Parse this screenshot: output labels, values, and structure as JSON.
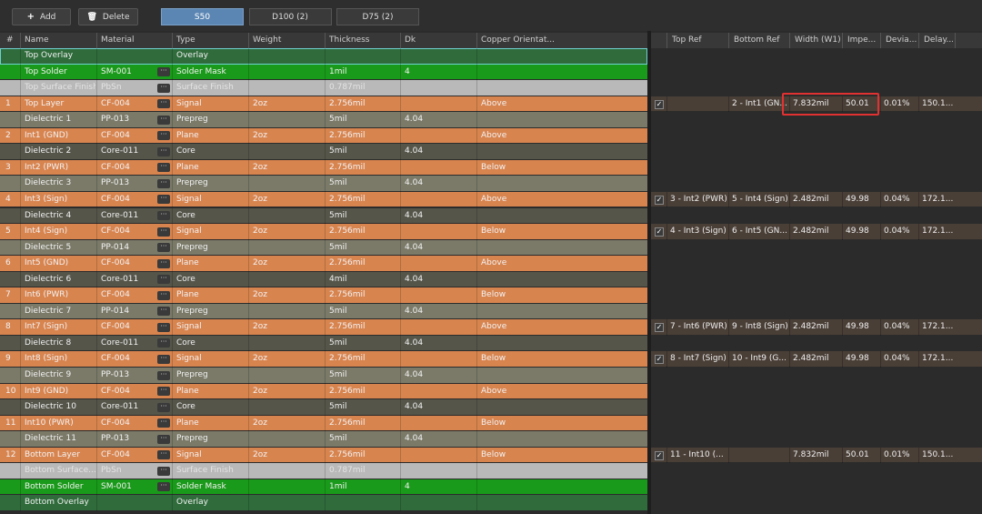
{
  "toolbar": {
    "buttons": [
      "Add",
      "Delete"
    ],
    "tabs": [
      "S50",
      "D100 (2)",
      "D75 (2)"
    ],
    "active_tab": 0
  },
  "left": {
    "columns": [
      "#",
      "Name",
      "Material",
      "Type",
      "Weight",
      "Thickness",
      "Dk",
      "Copper Orientat..."
    ],
    "rows": [
      {
        "color": "#2f6b3b",
        "cells": [
          null,
          "Top Overlay",
          null,
          "Overlay",
          null,
          null,
          null,
          null
        ]
      },
      {
        "color": "#1a9a1a",
        "cells": [
          null,
          "Top Solder",
          "SM-001",
          "Solder Mask",
          null,
          "1mil",
          "4",
          null
        ]
      },
      {
        "color": "#b9b9b9",
        "text_color": "#e4e4e4",
        "cells": [
          null,
          "Top Surface Finish",
          "PbSn",
          "Surface Finish",
          null,
          "0.787mil",
          null,
          null
        ]
      },
      {
        "color": "#d8844f",
        "cells": [
          "1",
          "Top Layer",
          "CF-004",
          "Signal",
          "2oz",
          "2.756mil",
          null,
          "Above"
        ]
      },
      {
        "color": "#7b7a69",
        "cells": [
          null,
          "Dielectric 1",
          "PP-013",
          "Prepreg",
          null,
          "5mil",
          "4.04",
          null
        ]
      },
      {
        "color": "#d8844f",
        "cells": [
          "2",
          "Int1 (GND)",
          "CF-004",
          "Plane",
          "2oz",
          "2.756mil",
          null,
          "Above"
        ]
      },
      {
        "color": "#55554a",
        "cells": [
          null,
          "Dielectric 2",
          "Core-011",
          "Core",
          null,
          "5mil",
          "4.04",
          null
        ]
      },
      {
        "color": "#d8844f",
        "cells": [
          "3",
          "Int2 (PWR)",
          "CF-004",
          "Plane",
          "2oz",
          "2.756mil",
          null,
          "Below"
        ]
      },
      {
        "color": "#7b7a69",
        "cells": [
          null,
          "Dielectric 3",
          "PP-013",
          "Prepreg",
          null,
          "5mil",
          "4.04",
          null
        ]
      },
      {
        "color": "#d8844f",
        "cells": [
          "4",
          "Int3 (Sign)",
          "CF-004",
          "Signal",
          "2oz",
          "2.756mil",
          null,
          "Above"
        ]
      },
      {
        "color": "#55554a",
        "cells": [
          null,
          "Dielectric 4",
          "Core-011",
          "Core",
          null,
          "5mil",
          "4.04",
          null
        ]
      },
      {
        "color": "#d8844f",
        "cells": [
          "5",
          "Int4 (Sign)",
          "CF-004",
          "Signal",
          "2oz",
          "2.756mil",
          null,
          "Below"
        ]
      },
      {
        "color": "#7b7a69",
        "cells": [
          null,
          "Dielectric 5",
          "PP-014",
          "Prepreg",
          null,
          "5mil",
          "4.04",
          null
        ]
      },
      {
        "color": "#d8844f",
        "cells": [
          "6",
          "Int5 (GND)",
          "CF-004",
          "Plane",
          "2oz",
          "2.756mil",
          null,
          "Above"
        ]
      },
      {
        "color": "#55554a",
        "cells": [
          null,
          "Dielectric 6",
          "Core-011",
          "Core",
          null,
          "4mil",
          "4.04",
          null
        ]
      },
      {
        "color": "#d8844f",
        "cells": [
          "7",
          "Int6 (PWR)",
          "CF-004",
          "Plane",
          "2oz",
          "2.756mil",
          null,
          "Below"
        ]
      },
      {
        "color": "#7b7a69",
        "cells": [
          null,
          "Dielectric 7",
          "PP-014",
          "Prepreg",
          null,
          "5mil",
          "4.04",
          null
        ]
      },
      {
        "color": "#d8844f",
        "cells": [
          "8",
          "Int7 (Sign)",
          "CF-004",
          "Signal",
          "2oz",
          "2.756mil",
          null,
          "Above"
        ]
      },
      {
        "color": "#55554a",
        "cells": [
          null,
          "Dielectric 8",
          "Core-011",
          "Core",
          null,
          "5mil",
          "4.04",
          null
        ]
      },
      {
        "color": "#d8844f",
        "cells": [
          "9",
          "Int8 (Sign)",
          "CF-004",
          "Signal",
          "2oz",
          "2.756mil",
          null,
          "Below"
        ]
      },
      {
        "color": "#7b7a69",
        "cells": [
          null,
          "Dielectric 9",
          "PP-013",
          "Prepreg",
          null,
          "5mil",
          "4.04",
          null
        ]
      },
      {
        "color": "#d8844f",
        "cells": [
          "10",
          "Int9 (GND)",
          "CF-004",
          "Plane",
          "2oz",
          "2.756mil",
          null,
          "Above"
        ]
      },
      {
        "color": "#55554a",
        "cells": [
          null,
          "Dielectric 10",
          "Core-011",
          "Core",
          null,
          "5mil",
          "4.04",
          null
        ]
      },
      {
        "color": "#d8844f",
        "cells": [
          "11",
          "Int10 (PWR)",
          "CF-004",
          "Plane",
          "2oz",
          "2.756mil",
          null,
          "Below"
        ]
      },
      {
        "color": "#7b7a69",
        "cells": [
          null,
          "Dielectric 11",
          "PP-013",
          "Prepreg",
          null,
          "5mil",
          "4.04",
          null
        ]
      },
      {
        "color": "#d8844f",
        "cells": [
          "12",
          "Bottom Layer",
          "CF-004",
          "Signal",
          "2oz",
          "2.756mil",
          null,
          "Below"
        ]
      },
      {
        "color": "#b9b9b9",
        "text_color": "#e4e4e4",
        "cells": [
          null,
          "Bottom Surface...",
          "PbSn",
          "Surface Finish",
          null,
          "0.787mil",
          null,
          null
        ]
      },
      {
        "color": "#1a9a1a",
        "cells": [
          null,
          "Bottom Solder",
          "SM-001",
          "Solder Mask",
          null,
          "1mil",
          "4",
          null
        ]
      },
      {
        "color": "#2f6b3b",
        "cells": [
          null,
          "Bottom Overlay",
          null,
          "Overlay",
          null,
          null,
          null,
          null
        ]
      }
    ]
  },
  "right": {
    "columns": [
      "Top Ref",
      "Bottom Ref",
      "Width (W1)",
      "Impe...",
      "Devia...",
      "Delay..."
    ],
    "rows": [
      null,
      null,
      null,
      [
        null,
        "2 - Int1 (GN...",
        "7.832mil",
        "50.01",
        "0.01%",
        "150.1..."
      ],
      null,
      null,
      null,
      null,
      null,
      [
        "3 - Int2 (PWR)",
        "5 - Int4 (Sign)",
        "2.482mil",
        "49.98",
        "0.04%",
        "172.1..."
      ],
      null,
      [
        "4 - Int3 (Sign)",
        "6 - Int5 (GN...",
        "2.482mil",
        "49.98",
        "0.04%",
        "172.1..."
      ],
      null,
      null,
      null,
      null,
      null,
      [
        "7 - Int6 (PWR)",
        "9 - Int8 (Sign)",
        "2.482mil",
        "49.98",
        "0.04%",
        "172.1..."
      ],
      null,
      [
        "8 - Int7 (Sign)",
        "10 - Int9 (G...",
        "2.482mil",
        "49.98",
        "0.04%",
        "172.1..."
      ],
      null,
      null,
      null,
      null,
      null,
      [
        "11 - Int10 (...",
        null,
        "7.832mil",
        "50.01",
        "0.01%",
        "150.1..."
      ],
      null,
      null,
      null
    ]
  }
}
